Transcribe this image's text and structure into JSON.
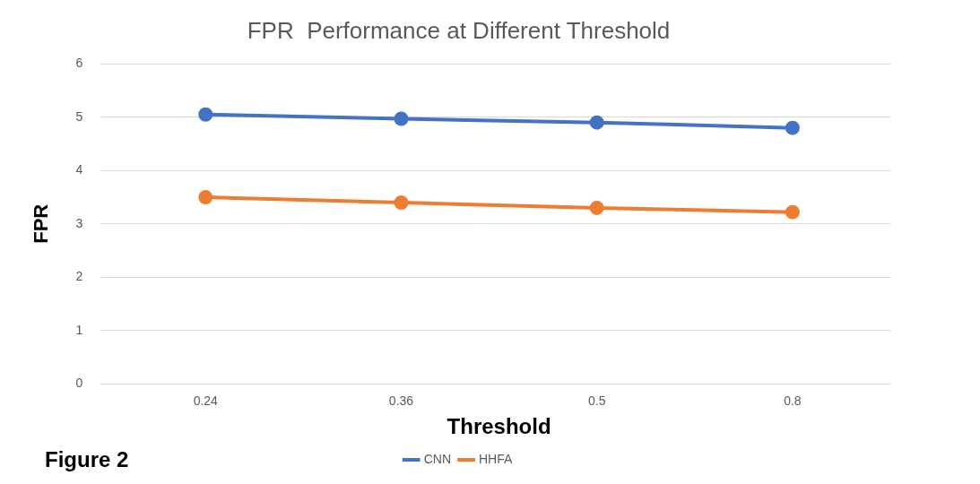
{
  "chart_data": {
    "type": "line",
    "title": "FPR  Performance at Different Threshold",
    "xlabel": "Threshold",
    "ylabel": "FPR",
    "annotations": [
      "Figure 2"
    ],
    "categories": [
      "0.24",
      "0.36",
      "0.5",
      "0.8"
    ],
    "series": [
      {
        "name": "CNN",
        "color": "#4472c4",
        "values": [
          5.05,
          4.97,
          4.9,
          4.8
        ]
      },
      {
        "name": "HHFA",
        "color": "#ed7d31",
        "values": [
          3.5,
          3.4,
          3.3,
          3.22
        ]
      }
    ],
    "ylim": [
      0,
      6
    ],
    "yticks": [
      0,
      1,
      2,
      3,
      4,
      5,
      6
    ],
    "grid": "y",
    "legend": "bottom",
    "marker": "circle",
    "line_style": "solid"
  }
}
